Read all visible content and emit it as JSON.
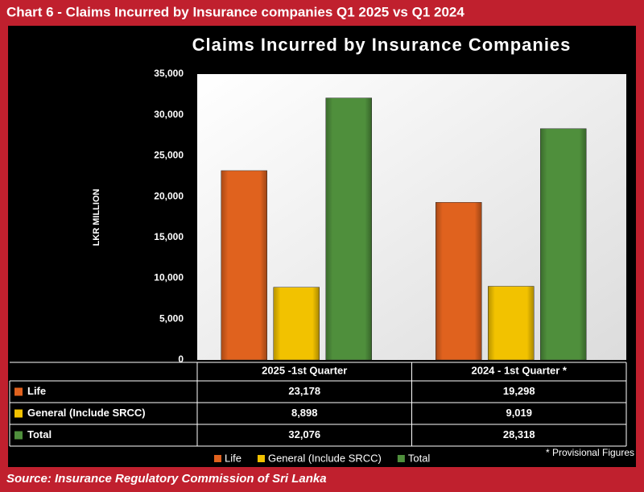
{
  "chart_data": {
    "type": "bar",
    "header": "Chart 6 - Claims Incurred by Insurance companies Q1 2025 vs Q1 2024",
    "title": "Claims Incurred by Insurance Companies",
    "y_label": "LKR MILLION",
    "categories": [
      "2025 -1st Quarter",
      "2024 - 1st  Quarter *"
    ],
    "series": [
      {
        "name": "Life",
        "color": "#e0621e",
        "values": [
          23178,
          19298
        ],
        "value_labels": [
          "23,178",
          "19,298"
        ]
      },
      {
        "name": "General (Include SRCC)",
        "color": "#f2c200",
        "values": [
          8898,
          9019
        ],
        "value_labels": [
          "8,898",
          "9,019"
        ]
      },
      {
        "name": "Total",
        "color": "#4f8f3c",
        "values": [
          32076,
          28318
        ],
        "value_labels": [
          "32,076",
          "28,318"
        ]
      }
    ],
    "ylim": [
      0,
      35000
    ],
    "yticks": [
      0,
      {
        "value": 5000,
        "label": "5,000"
      },
      {
        "value": 10000,
        "label": "10,000"
      },
      {
        "value": 15000,
        "label": "15,000"
      },
      {
        "value": 20000,
        "label": "20,000"
      },
      {
        "value": 25000,
        "label": "25,000"
      },
      {
        "value": 30000,
        "label": "30,000"
      },
      {
        "value": 35000,
        "label": "35,000"
      }
    ],
    "note": "* Provisional Figures",
    "source": "Source: Insurance Regulatory Commission of Sri Lanka"
  }
}
